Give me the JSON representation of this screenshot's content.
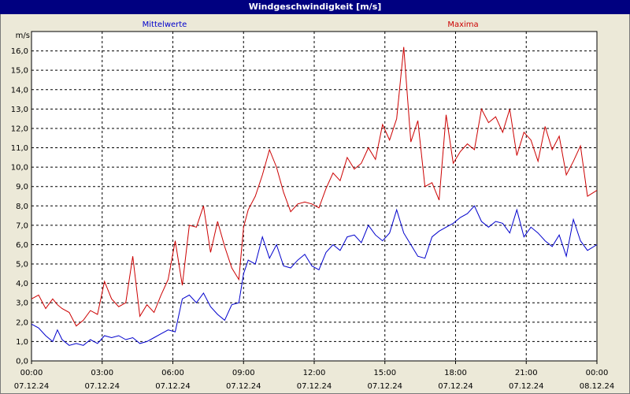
{
  "window": {
    "title": "Windgeschwindigkeit [m/s]"
  },
  "chart_data": {
    "type": "line",
    "title": "Windgeschwindigkeit [m/s]",
    "ylabel": "m/s",
    "xlabel": "",
    "ylim": [
      0,
      17
    ],
    "xlim": [
      0,
      24
    ],
    "yticks": [
      "0,0",
      "1,0",
      "2,0",
      "3,0",
      "4,0",
      "5,0",
      "6,0",
      "7,0",
      "8,0",
      "9,0",
      "10,0",
      "11,0",
      "12,0",
      "13,0",
      "14,0",
      "15,0",
      "16,0"
    ],
    "xticks": [
      {
        "time": "00:00",
        "date": "07.12.24"
      },
      {
        "time": "03:00",
        "date": "07.12.24"
      },
      {
        "time": "06:00",
        "date": "07.12.24"
      },
      {
        "time": "09:00",
        "date": "07.12.24"
      },
      {
        "time": "12:00",
        "date": "07.12.24"
      },
      {
        "time": "15:00",
        "date": "07.12.24"
      },
      {
        "time": "18:00",
        "date": "07.12.24"
      },
      {
        "time": "21:00",
        "date": "07.12.24"
      },
      {
        "time": "00:00",
        "date": "08.12.24"
      }
    ],
    "grid": true,
    "series": [
      {
        "name": "Mittelwerte",
        "color": "#0000cc",
        "x": [
          0,
          0.3,
          0.6,
          0.9,
          1.1,
          1.3,
          1.6,
          1.9,
          2.2,
          2.5,
          2.8,
          3.1,
          3.4,
          3.7,
          4.0,
          4.3,
          4.6,
          4.9,
          5.2,
          5.5,
          5.8,
          6.1,
          6.4,
          6.7,
          7.0,
          7.3,
          7.6,
          7.9,
          8.2,
          8.5,
          8.8,
          9.0,
          9.2,
          9.5,
          9.8,
          10.1,
          10.4,
          10.7,
          11.0,
          11.3,
          11.6,
          11.9,
          12.2,
          12.5,
          12.8,
          13.1,
          13.4,
          13.7,
          14.0,
          14.3,
          14.6,
          14.9,
          15.2,
          15.5,
          15.8,
          16.1,
          16.4,
          16.7,
          17.0,
          17.3,
          17.6,
          17.9,
          18.2,
          18.5,
          18.8,
          19.1,
          19.4,
          19.7,
          20.0,
          20.3,
          20.6,
          20.9,
          21.2,
          21.5,
          21.8,
          22.1,
          22.4,
          22.7,
          23.0,
          23.3,
          23.6,
          24.0
        ],
        "values": [
          1.9,
          1.7,
          1.3,
          1.0,
          1.6,
          1.1,
          0.8,
          0.9,
          0.8,
          1.1,
          0.9,
          1.3,
          1.2,
          1.3,
          1.1,
          1.2,
          0.9,
          1.0,
          1.2,
          1.4,
          1.6,
          1.5,
          3.2,
          3.4,
          3.0,
          3.5,
          2.8,
          2.4,
          2.1,
          2.9,
          3.0,
          4.5,
          5.2,
          5.0,
          6.4,
          5.3,
          6.0,
          4.9,
          4.8,
          5.2,
          5.5,
          4.9,
          4.7,
          5.6,
          6.0,
          5.7,
          6.4,
          6.5,
          6.1,
          7.0,
          6.5,
          6.2,
          6.6,
          7.8,
          6.6,
          6.0,
          5.4,
          5.3,
          6.4,
          6.7,
          6.9,
          7.1,
          7.4,
          7.6,
          8.0,
          7.2,
          6.9,
          7.2,
          7.1,
          6.6,
          7.8,
          6.4,
          6.9,
          6.6,
          6.2,
          5.9,
          6.5,
          5.4,
          7.3,
          6.2,
          5.7,
          6.0
        ],
        "_units": "m/s"
      },
      {
        "name": "Maxima",
        "color": "#cc0000",
        "x": [
          0,
          0.3,
          0.6,
          0.9,
          1.1,
          1.3,
          1.6,
          1.9,
          2.2,
          2.5,
          2.8,
          3.1,
          3.4,
          3.7,
          4.0,
          4.3,
          4.6,
          4.9,
          5.2,
          5.5,
          5.8,
          6.1,
          6.4,
          6.7,
          7.0,
          7.3,
          7.6,
          7.9,
          8.2,
          8.5,
          8.8,
          9.0,
          9.2,
          9.5,
          9.8,
          10.1,
          10.4,
          10.7,
          11.0,
          11.3,
          11.6,
          11.9,
          12.2,
          12.5,
          12.8,
          13.1,
          13.4,
          13.7,
          14.0,
          14.3,
          14.6,
          14.9,
          15.2,
          15.5,
          15.8,
          16.1,
          16.4,
          16.7,
          17.0,
          17.3,
          17.6,
          17.9,
          18.2,
          18.5,
          18.8,
          19.1,
          19.4,
          19.7,
          20.0,
          20.3,
          20.6,
          20.9,
          21.2,
          21.5,
          21.8,
          22.1,
          22.4,
          22.7,
          23.0,
          23.3,
          23.6,
          24.0
        ],
        "values": [
          3.2,
          3.4,
          2.7,
          3.2,
          2.9,
          2.7,
          2.5,
          1.8,
          2.1,
          2.6,
          2.4,
          4.1,
          3.2,
          2.8,
          3.0,
          5.4,
          2.3,
          2.9,
          2.5,
          3.4,
          4.2,
          6.2,
          3.9,
          7.0,
          6.9,
          8.0,
          5.6,
          7.2,
          5.9,
          4.8,
          4.2,
          6.9,
          7.8,
          8.5,
          9.6,
          10.9,
          10.0,
          8.7,
          7.7,
          8.1,
          8.2,
          8.1,
          7.9,
          8.9,
          9.7,
          9.3,
          10.5,
          9.9,
          10.2,
          11.0,
          10.4,
          12.2,
          11.4,
          12.5,
          16.2,
          11.3,
          12.4,
          9.0,
          9.2,
          8.3,
          12.7,
          10.2,
          10.8,
          11.2,
          10.9,
          13.0,
          12.3,
          12.6,
          11.8,
          13.0,
          10.6,
          11.8,
          11.4,
          10.3,
          12.1,
          10.9,
          11.6,
          9.6,
          10.3,
          11.1,
          8.5,
          8.8
        ]
      }
    ]
  }
}
